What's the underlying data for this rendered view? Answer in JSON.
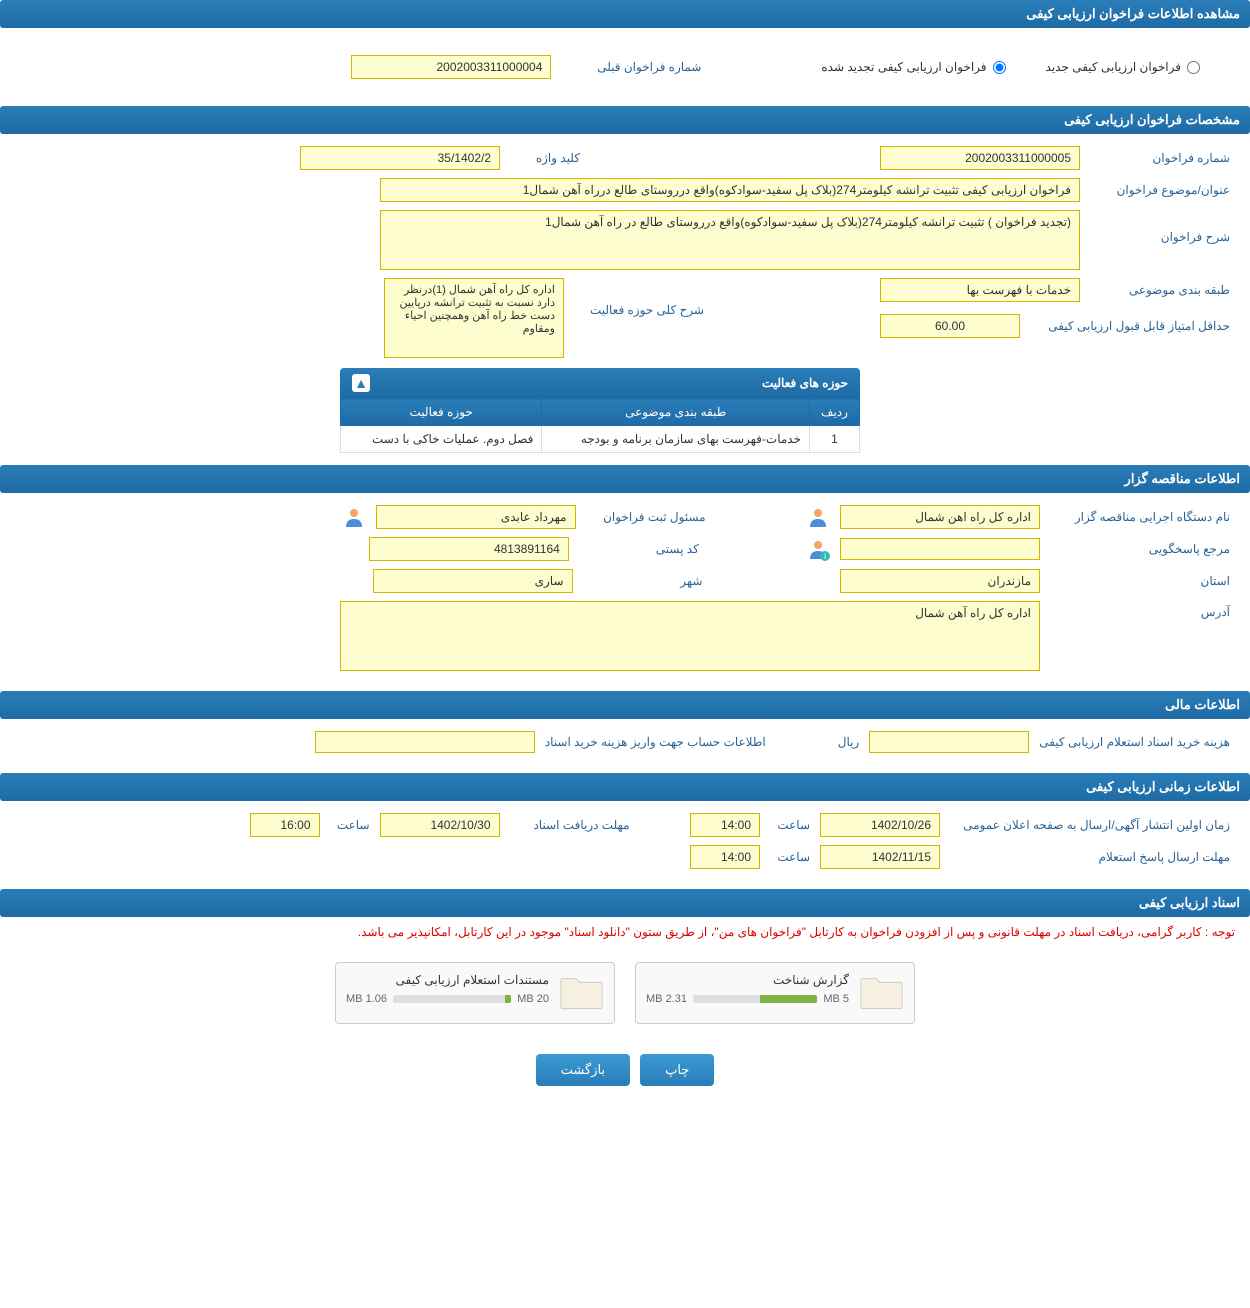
{
  "headers": {
    "main": "مشاهده اطلاعات فراخوان ارزیابی کیفی",
    "spec": "مشخصات فراخوان ارزیابی کیفی",
    "tenderer": "اطلاعات مناقصه گزار",
    "financial": "اطلاعات مالی",
    "timing": "اطلاعات زمانی ارزیابی کیفی",
    "documents": "اسناد ارزیابی کیفی"
  },
  "top": {
    "radio_new": "فراخوان ارزیابی کیفی جدید",
    "radio_renew": "فراخوان ارزیابی کیفی تجدید شده",
    "prev_label": "شماره فراخوان قبلی",
    "prev_value": "2002003311000004"
  },
  "spec": {
    "call_no_label": "شماره فراخوان",
    "call_no_value": "2002003311000005",
    "keyword_label": "کلید واژه",
    "keyword_value": "35/1402/2",
    "subject_label": "عنوان/موضوع فراخوان",
    "subject_value": "فراخوان ارزیابی کیفی تثبیت ترانشه کیلومتر274(بلاک پل سفید-سوادکوه)واقع درروستای طالع درراه آهن شمال1",
    "desc_label": "شرح فراخوان",
    "desc_value": "(تجدید فراخوان ) تثبیت ترانشه کیلومتر274(بلاک پل سفید-سوادکوه)واقع درروستای طالع در راه آهن شمال1",
    "category_label": "طبقه بندی موضوعی",
    "category_value": "خدمات با فهرست بها",
    "activity_desc_label": "شرح کلی حوزه فعالیت",
    "activity_desc_value": "اداره کل راه آهن شمال (1)درنظر دارد نسبت به تثبیت ترانشه درپایین دست خط راه آهن وهمچنین احیاء ومقاوم",
    "min_score_label": "حداقل امتیاز قابل قبول ارزیابی کیفی",
    "min_score_value": "60.00",
    "activity_table_title": "حوزه های فعالیت",
    "col_row": "ردیف",
    "col_category": "طبقه بندی موضوعی",
    "col_activity": "حوزه فعالیت",
    "row1_num": "1",
    "row1_cat": "خدمات-فهرست بهای سازمان برنامه و بودجه",
    "row1_act": "فصل دوم. عملیات خاکی با دست"
  },
  "tenderer": {
    "org_label": "نام دستگاه اجرایی مناقصه گزار",
    "org_value": "اداره کل راه اهن شمال",
    "registrar_label": "مسئول ثبت فراخوان",
    "registrar_value": "مهرداد عابدی",
    "responder_label": "مرجع پاسخگویی",
    "responder_value": "",
    "postal_label": "کد پستی",
    "postal_value": "4813891164",
    "province_label": "استان",
    "province_value": "مازندران",
    "city_label": "شهر",
    "city_value": "ساری",
    "address_label": "آدرس",
    "address_value": "اداره کل راه آهن شمال"
  },
  "financial": {
    "cost_label": "هزینه خرید اسناد استعلام ارزیابی کیفی",
    "cost_value": "",
    "cost_unit": "ریال",
    "account_label": "اطلاعات حساب جهت واریز هزینه خرید اسناد",
    "account_value": ""
  },
  "timing": {
    "publish_label": "زمان اولین انتشار آگهی/ارسال به صفحه اعلان عمومی",
    "publish_date": "1402/10/26",
    "publish_time_label": "ساعت",
    "publish_time": "14:00",
    "receive_label": "مهلت دریافت اسناد",
    "receive_date": "1402/10/30",
    "receive_time_label": "ساعت",
    "receive_time": "16:00",
    "submit_label": "مهلت ارسال پاسخ استعلام",
    "submit_date": "1402/11/15",
    "submit_time_label": "ساعت",
    "submit_time": "14:00"
  },
  "docs": {
    "notice": "توجه : کاربر گرامی، دریافت اسناد در مهلت قانونی و پس از افزودن فراخوان به کارتابل \"فراخوان های من\"، از طریق ستون \"دانلود اسناد\" موجود در این کارتابل، امکانپذیر می باشد.",
    "doc1_title": "گزارش شناخت",
    "doc1_used": "2.31 MB",
    "doc1_total": "5 MB",
    "doc1_fill_pct": 46,
    "doc2_title": "مستندات استعلام ارزیابی کیفی",
    "doc2_used": "1.06 MB",
    "doc2_total": "20 MB",
    "doc2_fill_pct": 5
  },
  "buttons": {
    "print": "چاپ",
    "back": "بازگشت"
  },
  "colors": {
    "header_bg": "#2a7db8",
    "value_bg": "#fdfdd0",
    "value_border": "#d4b800",
    "label_color": "#2a6496",
    "notice_color": "#d00",
    "progress_fill": "#7cb342"
  }
}
